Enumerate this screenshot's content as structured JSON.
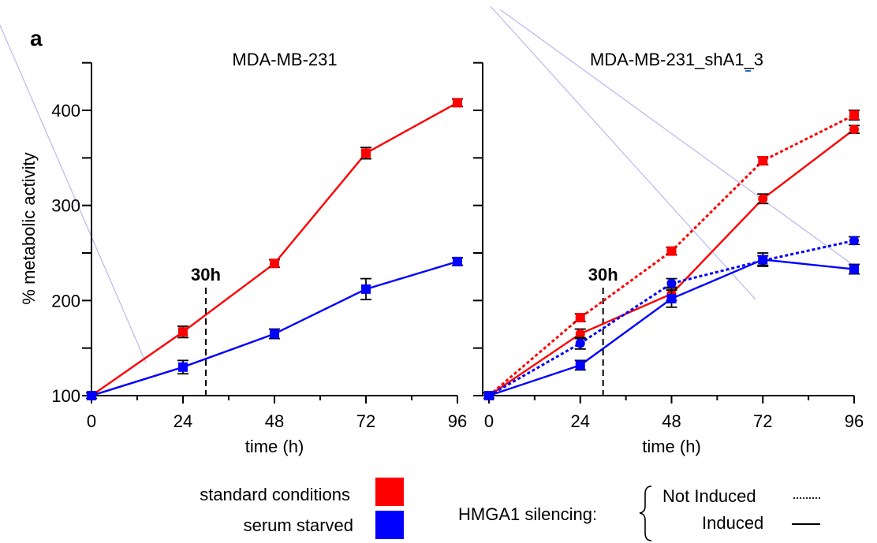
{
  "figure": {
    "panel_letter": "a",
    "colors": {
      "standard": "#ff0000",
      "serum_starved": "#0000ff"
    },
    "legend": {
      "standard_label": "standard conditions",
      "serum_label": "serum starved",
      "silencing_label": "HMGA1 silencing:",
      "not_induced_label": "Not Induced",
      "induced_label": "Induced"
    }
  },
  "chart_data": [
    {
      "type": "line",
      "title": "MDA-MB-231",
      "xlabel": "time (h)",
      "ylabel": "% metabolic activity",
      "xlim": [
        0,
        96
      ],
      "ylim": [
        100,
        450
      ],
      "x_ticks": [
        0,
        24,
        48,
        72,
        96
      ],
      "y_ticks": [
        100,
        200,
        300,
        400
      ],
      "vline": {
        "x": 30,
        "label": "30h"
      },
      "x": [
        0,
        24,
        48,
        72,
        96
      ],
      "series": [
        {
          "condition": "standard conditions",
          "color": "#ff0000",
          "style": "solid",
          "marker": "square",
          "values": [
            100,
            167,
            239,
            355,
            408
          ],
          "errors": [
            3,
            6,
            4,
            6,
            4
          ]
        },
        {
          "condition": "serum starved",
          "color": "#0000ff",
          "style": "solid",
          "marker": "square",
          "values": [
            100,
            130,
            165,
            212,
            241
          ],
          "errors": [
            3,
            7,
            5,
            11,
            4
          ]
        }
      ]
    },
    {
      "type": "line",
      "title": "MDA-MB-231_shA1_3",
      "xlabel": "time (h)",
      "ylabel": "",
      "xlim": [
        0,
        96
      ],
      "ylim": [
        100,
        450
      ],
      "x_ticks": [
        0,
        24,
        48,
        72,
        96
      ],
      "y_ticks": [
        100,
        200,
        300,
        400
      ],
      "vline": {
        "x": 30,
        "label": "30h"
      },
      "x": [
        0,
        24,
        48,
        72,
        96
      ],
      "series": [
        {
          "condition": "standard conditions",
          "silencing": "Not Induced",
          "color": "#ff0000",
          "style": "dotted",
          "marker": "square",
          "values": [
            100,
            182,
            252,
            347,
            395
          ],
          "errors": [
            3,
            4,
            4,
            4,
            5
          ]
        },
        {
          "condition": "standard conditions",
          "silencing": "Induced",
          "color": "#ff0000",
          "style": "solid",
          "marker": "circle",
          "values": [
            100,
            165,
            207,
            307,
            380
          ],
          "errors": [
            3,
            5,
            7,
            5,
            4
          ]
        },
        {
          "condition": "serum starved",
          "silencing": "Not Induced",
          "color": "#0000ff",
          "style": "dotted",
          "marker": "circle",
          "values": [
            100,
            155,
            218,
            242,
            263
          ],
          "errors": [
            3,
            6,
            5,
            5,
            4
          ]
        },
        {
          "condition": "serum starved",
          "silencing": "Induced",
          "color": "#0000ff",
          "style": "solid",
          "marker": "square",
          "values": [
            100,
            132,
            202,
            243,
            233
          ],
          "errors": [
            3,
            5,
            9,
            7,
            5
          ]
        }
      ]
    }
  ]
}
